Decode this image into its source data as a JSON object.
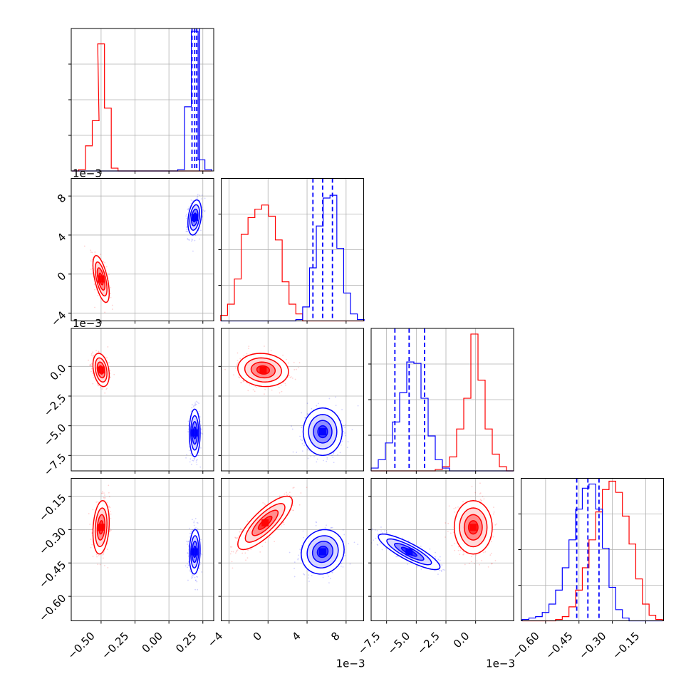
{
  "chart_data": {
    "type": "corner",
    "grid": true,
    "colors": {
      "series_a": "#ff0000",
      "series_b": "#0000ff",
      "grid": "#b0b0b0",
      "frame": "#000000"
    },
    "series": [
      {
        "color": "#ff0000"
      },
      {
        "color": "#0000ff"
      }
    ],
    "params": [
      {
        "range": [
          -0.72,
          0.33
        ],
        "ticks": [
          -0.5,
          -0.25,
          0.0,
          0.25
        ],
        "tick_labels": [
          "−0.50",
          "−0.25",
          "0.00",
          "0.25"
        ],
        "exponent_label": "",
        "hist_bins_center": [
          -0.69,
          -0.64,
          -0.59,
          -0.54,
          -0.5,
          -0.45,
          -0.4,
          -0.35,
          -0.3,
          -0.25,
          -0.2,
          -0.15,
          -0.1,
          -0.06,
          -0.01,
          0.04,
          0.09,
          0.14,
          0.19,
          0.24,
          0.29
        ],
        "hist": {
          "series_a": [
            0,
            0.01,
            0.18,
            0.36,
            0.91,
            0.45,
            0.02,
            0,
            0,
            0,
            0,
            0,
            0,
            0,
            0,
            0,
            0,
            0,
            0,
            0,
            0
          ],
          "series_b": [
            0,
            0,
            0,
            0,
            0,
            0,
            0,
            0,
            0,
            0,
            0,
            0,
            0,
            0,
            0,
            0,
            0.01,
            0.46,
            1.0,
            0.08,
            0.01
          ]
        },
        "quantiles_b": [
          0.17,
          0.19,
          0.205
        ],
        "extra_lines_b": [
          0.225
        ]
      },
      {
        "range": [
          -4.8,
          9.8
        ],
        "ticks": [
          -4,
          0,
          4,
          8
        ],
        "tick_labels": [
          "−4",
          "0",
          "4",
          "8"
        ],
        "exponent_label": "1e−3",
        "hist_bins_center": [
          -4.5,
          -3.8,
          -3.1,
          -2.4,
          -1.7,
          -1.0,
          -0.3,
          0.4,
          1.1,
          1.8,
          2.5,
          3.2,
          3.9,
          4.6,
          5.3,
          6.0,
          6.7,
          7.4,
          8.1,
          8.8,
          9.5
        ],
        "hist": {
          "series_a": [
            0.04,
            0.12,
            0.3,
            0.62,
            0.74,
            0.8,
            0.83,
            0.75,
            0.58,
            0.28,
            0.12,
            0.05,
            0,
            0,
            0,
            0,
            0,
            0,
            0,
            0,
            0
          ],
          "series_b": [
            0,
            0,
            0,
            0,
            0,
            0,
            0,
            0,
            0,
            0,
            0,
            0.01,
            0.1,
            0.38,
            0.68,
            0.88,
            0.9,
            0.52,
            0.2,
            0.05,
            0.01
          ]
        },
        "quantiles_b": [
          4.6,
          5.6,
          6.6
        ],
        "extra_lines_b": []
      },
      {
        "range": [
          -8.8,
          3.2
        ],
        "ticks": [
          -7.5,
          -5.0,
          -2.5,
          0.0
        ],
        "tick_labels": [
          "−7.5",
          "−5.0",
          "−2.5",
          "0.0"
        ],
        "exponent_label": "1e−3",
        "hist_bins_center": [
          -8.5,
          -7.9,
          -7.3,
          -6.7,
          -6.1,
          -5.5,
          -4.9,
          -4.3,
          -3.7,
          -3.1,
          -2.5,
          -1.9,
          -1.3,
          -0.7,
          -0.1,
          0.5,
          1.1,
          1.7,
          2.3,
          2.9
        ],
        "hist": {
          "series_a": [
            0,
            0,
            0,
            0,
            0,
            0,
            0,
            0,
            0,
            0.01,
            0.03,
            0.1,
            0.3,
            0.52,
            0.98,
            0.65,
            0.3,
            0.12,
            0.03,
            0
          ],
          "series_b": [
            0.02,
            0.08,
            0.2,
            0.35,
            0.56,
            0.78,
            0.77,
            0.52,
            0.25,
            0.08,
            0.02,
            0,
            0,
            0,
            0,
            0,
            0,
            0,
            0,
            0
          ]
        },
        "quantiles_b": [
          -6.8,
          -5.6,
          -4.3
        ],
        "extra_lines_b": []
      },
      {
        "range": [
          -0.71,
          -0.07
        ],
        "ticks": [
          -0.6,
          -0.45,
          -0.3,
          -0.15
        ],
        "tick_labels": [
          "−0.60",
          "−0.45",
          "−0.30",
          "−0.15"
        ],
        "exponent_label": "",
        "hist_bins_center": [
          -0.69,
          -0.66,
          -0.63,
          -0.6,
          -0.57,
          -0.54,
          -0.51,
          -0.48,
          -0.45,
          -0.42,
          -0.39,
          -0.36,
          -0.33,
          -0.3,
          -0.27,
          -0.24,
          -0.21,
          -0.18,
          -0.15,
          -0.12,
          -0.09
        ],
        "hist": {
          "series_a": [
            0,
            0,
            0,
            0,
            0,
            0.01,
            0.03,
            0.1,
            0.22,
            0.38,
            0.58,
            0.78,
            0.94,
            1.0,
            0.92,
            0.75,
            0.55,
            0.3,
            0.12,
            0.04,
            0.01
          ],
          "series_b": [
            0.01,
            0.02,
            0.03,
            0.06,
            0.12,
            0.22,
            0.38,
            0.58,
            0.8,
            0.95,
            0.98,
            0.8,
            0.52,
            0.24,
            0.08,
            0.02,
            0,
            0,
            0,
            0,
            0
          ]
        },
        "quantiles_b": [
          -0.46,
          -0.41,
          -0.36
        ],
        "extra_lines_b": []
      }
    ],
    "blobs": [
      {
        "row": 1,
        "col": 0,
        "series": "series_a",
        "mean": [
          -0.5,
          -0.5
        ],
        "sd": [
          0.03,
          1.2
        ],
        "rho": -0.6
      },
      {
        "row": 1,
        "col": 0,
        "series": "series_b",
        "mean": [
          0.19,
          5.8
        ],
        "sd": [
          0.025,
          0.9
        ],
        "rho": 0.3
      },
      {
        "row": 2,
        "col": 0,
        "series": "series_a",
        "mean": [
          -0.5,
          -0.3
        ],
        "sd": [
          0.03,
          0.7
        ],
        "rho": -0.3
      },
      {
        "row": 2,
        "col": 0,
        "series": "series_b",
        "mean": [
          0.19,
          -5.6
        ],
        "sd": [
          0.02,
          1.0
        ],
        "rho": 0.0
      },
      {
        "row": 2,
        "col": 1,
        "series": "series_a",
        "mean": [
          -0.5,
          -0.3
        ],
        "sd": [
          1.3,
          0.7
        ],
        "rho": -0.1
      },
      {
        "row": 2,
        "col": 1,
        "series": "series_b",
        "mean": [
          5.6,
          -5.5
        ],
        "sd": [
          1.0,
          1.0
        ],
        "rho": 0.0
      },
      {
        "row": 3,
        "col": 0,
        "series": "series_a",
        "mean": [
          -0.5,
          -0.29
        ],
        "sd": [
          0.03,
          0.06
        ],
        "rho": 0.2
      },
      {
        "row": 3,
        "col": 0,
        "series": "series_b",
        "mean": [
          0.19,
          -0.4
        ],
        "sd": [
          0.02,
          0.05
        ],
        "rho": 0.1
      },
      {
        "row": 3,
        "col": 1,
        "series": "series_a",
        "mean": [
          -0.3,
          -0.27
        ],
        "sd": [
          1.4,
          0.06
        ],
        "rho": 0.8
      },
      {
        "row": 3,
        "col": 1,
        "series": "series_b",
        "mean": [
          5.6,
          -0.4
        ],
        "sd": [
          1.1,
          0.05
        ],
        "rho": 0.1
      },
      {
        "row": 3,
        "col": 2,
        "series": "series_a",
        "mean": [
          -0.2,
          -0.29
        ],
        "sd": [
          0.8,
          0.06
        ],
        "rho": 0.0
      },
      {
        "row": 3,
        "col": 2,
        "series": "series_b",
        "mean": [
          -5.6,
          -0.4
        ],
        "sd": [
          1.3,
          0.04
        ],
        "rho": -0.85
      }
    ]
  }
}
